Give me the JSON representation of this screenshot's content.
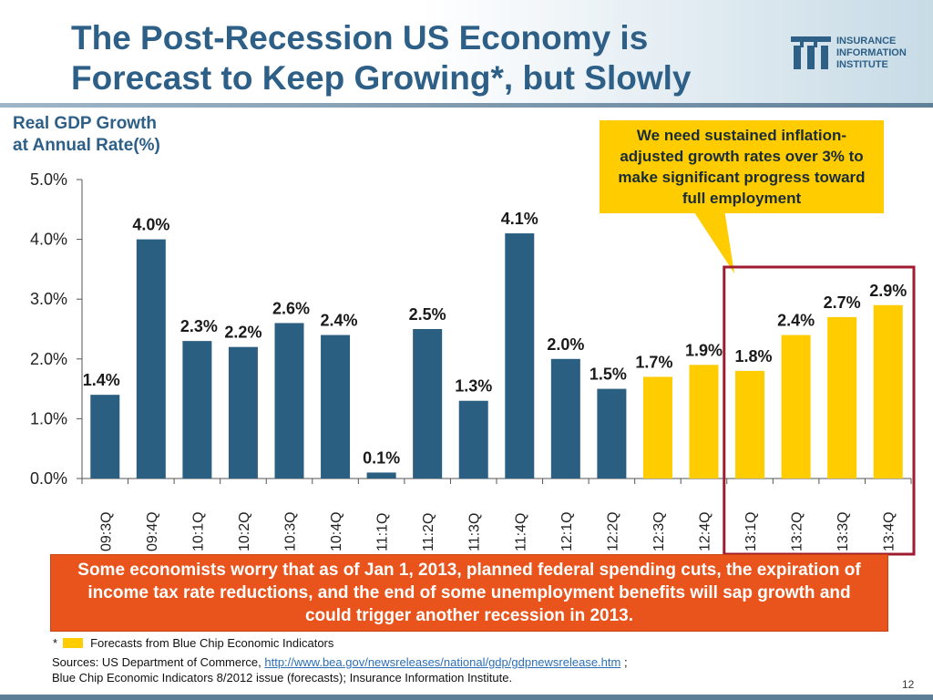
{
  "title": {
    "line1": "The Post-Recession US Economy is",
    "line2": "Forecast to Keep Growing*, but Slowly"
  },
  "logo": {
    "line1": "INSURANCE",
    "line2": "INFORMATION",
    "line3": "INSTITUTE"
  },
  "y_axis_title": {
    "line1": "Real GDP Growth",
    "line2": "at Annual Rate(%)"
  },
  "callout": "We need sustained inflation-adjusted growth rates over 3% to make significant progress toward full employment",
  "colors": {
    "actual": "#2b5f82",
    "forecast": "#ffcc00",
    "highlight_border": "#9e1b32",
    "callout_bg": "#ffcc00",
    "note_bg": "#e8541c"
  },
  "chart_data": {
    "type": "bar",
    "title": "Real GDP Growth at Annual Rate(%)",
    "xlabel": "",
    "ylabel": "Real GDP Growth at Annual Rate(%)",
    "ylim": [
      0,
      5
    ],
    "yticks": [
      "0.0%",
      "1.0%",
      "2.0%",
      "3.0%",
      "4.0%",
      "5.0%"
    ],
    "categories": [
      "09:3Q",
      "09:4Q",
      "10:1Q",
      "10:2Q",
      "10:3Q",
      "10:4Q",
      "11:1Q",
      "11:2Q",
      "11:3Q",
      "11:4Q",
      "12:1Q",
      "12:2Q",
      "12:3Q",
      "12:4Q",
      "13:1Q",
      "13:2Q",
      "13:3Q",
      "13:4Q"
    ],
    "values": [
      1.4,
      4.0,
      2.3,
      2.2,
      2.6,
      2.4,
      0.1,
      2.5,
      1.3,
      4.1,
      2.0,
      1.5,
      1.7,
      1.9,
      1.8,
      2.4,
      2.7,
      2.9
    ],
    "labels": [
      "1.4%",
      "4.0%",
      "2.3%",
      "2.2%",
      "2.6%",
      "2.4%",
      "0.1%",
      "2.5%",
      "1.3%",
      "4.1%",
      "2.0%",
      "1.5%",
      "1.7%",
      "1.9%",
      "1.8%",
      "2.4%",
      "2.7%",
      "2.9%"
    ],
    "forecast": [
      false,
      false,
      false,
      false,
      false,
      false,
      false,
      false,
      false,
      false,
      false,
      false,
      true,
      true,
      true,
      true,
      true,
      true
    ],
    "highlighted_range": [
      "13:1Q",
      "13:4Q"
    ]
  },
  "note": "Some economists worry that as of Jan 1, 2013, planned federal spending cuts, the expiration of income tax rate reductions, and the end of some unemployment benefits will sap growth and could trigger another recession in 2013.",
  "legend": {
    "marker": "*",
    "text": "Forecasts from Blue Chip Economic Indicators"
  },
  "sources": {
    "prefix": "Sources: US Department of Commerce,",
    "url": "http://www.bea.gov/newsreleases/national/gdp/gdpnewsrelease.htm",
    "suffix": ";",
    "line2": "Blue Chip Economic Indicators 8/2012 issue (forecasts); Insurance Information Institute."
  },
  "page_number": "12"
}
